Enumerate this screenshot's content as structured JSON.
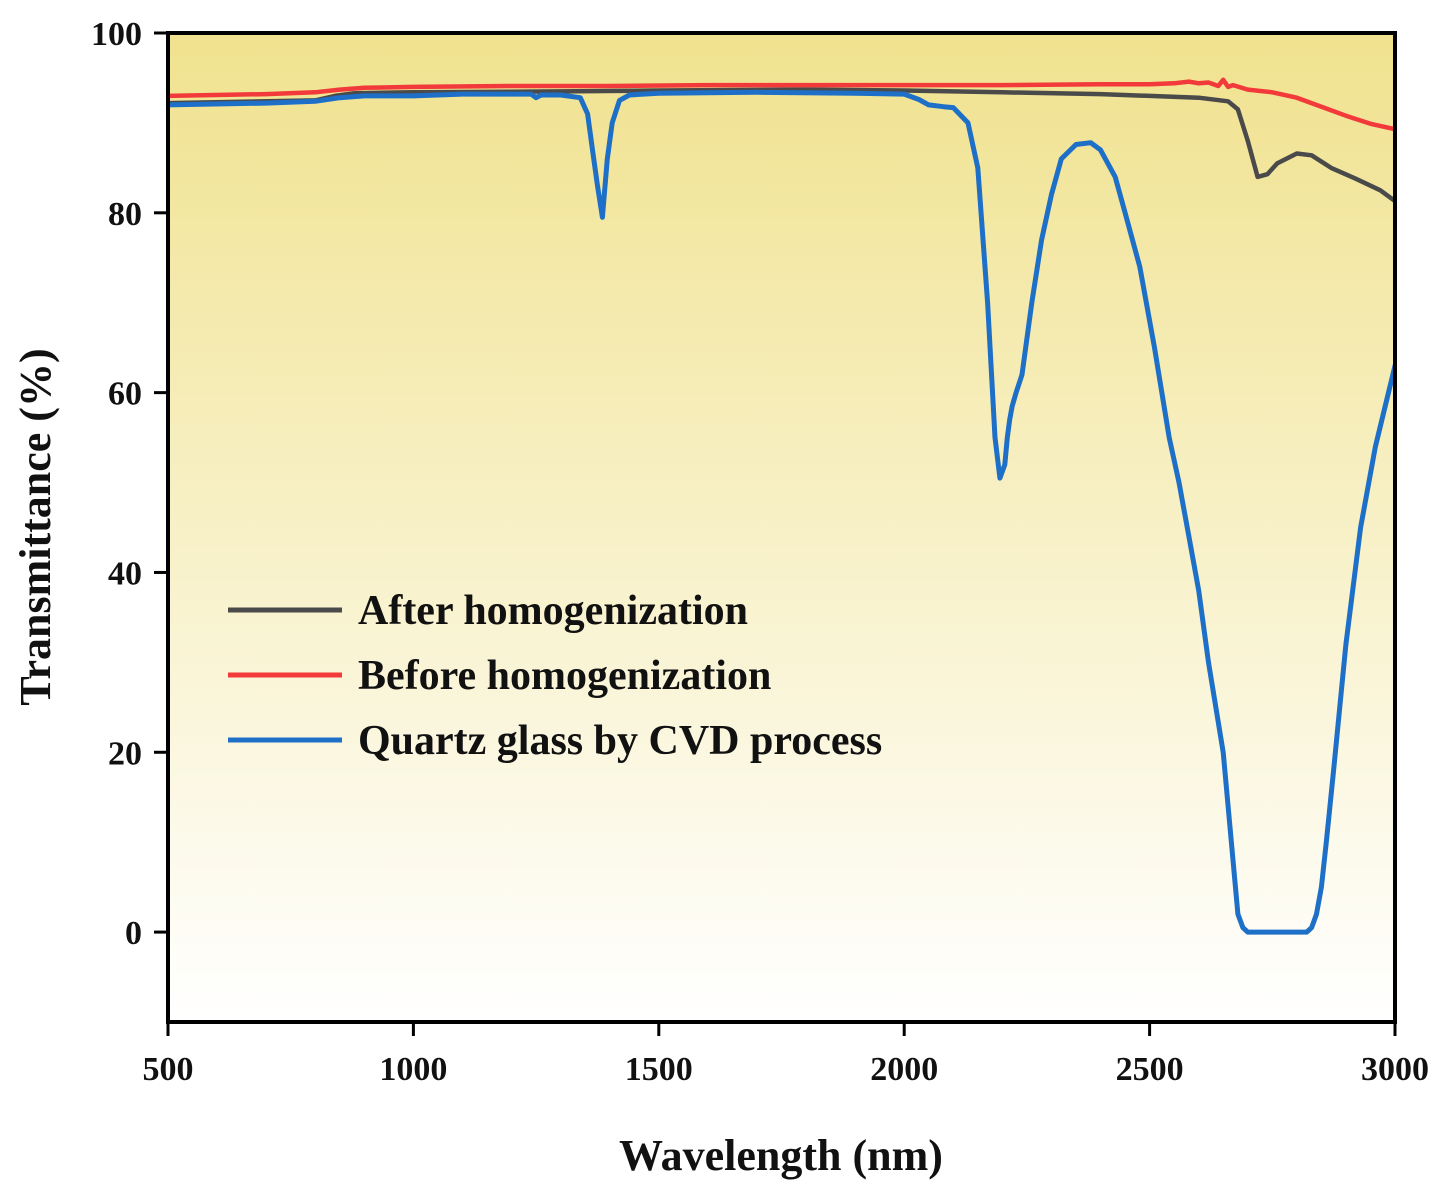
{
  "chart_data": {
    "type": "line",
    "title": "",
    "xlabel": "Wavelength (nm)",
    "ylabel": "Transmittance (%)",
    "xlim": [
      500,
      3000
    ],
    "ylim": [
      -10,
      100
    ],
    "xticks": [
      500,
      1000,
      1500,
      2000,
      2500,
      3000
    ],
    "yticks": [
      0,
      20,
      40,
      60,
      80,
      100
    ],
    "grid": false,
    "background": {
      "top": "#f0e28e",
      "bottom": "#ffffff"
    },
    "legend_position": "left-middle",
    "series": [
      {
        "name": "After homogenization",
        "color": "#4a4a4a",
        "x": [
          500,
          800,
          840,
          880,
          1000,
          1300,
          1500,
          1800,
          2000,
          2200,
          2400,
          2500,
          2600,
          2660,
          2680,
          2700,
          2720,
          2740,
          2760,
          2800,
          2830,
          2870,
          2920,
          2970,
          3000
        ],
        "y": [
          92.2,
          92.5,
          93.0,
          93.3,
          93.4,
          93.5,
          93.6,
          93.7,
          93.6,
          93.4,
          93.2,
          93.0,
          92.8,
          92.4,
          91.5,
          88.0,
          84.0,
          84.3,
          85.5,
          86.6,
          86.4,
          85.0,
          83.8,
          82.5,
          81.3
        ]
      },
      {
        "name": "Before homogenization",
        "color": "#f23a3a",
        "x": [
          500,
          700,
          800,
          850,
          900,
          1000,
          1200,
          1400,
          1600,
          1800,
          2000,
          2200,
          2400,
          2500,
          2550,
          2580,
          2600,
          2620,
          2640,
          2650,
          2660,
          2670,
          2700,
          2750,
          2800,
          2850,
          2900,
          2950,
          3000
        ],
        "y": [
          93.0,
          93.2,
          93.4,
          93.7,
          93.9,
          94.0,
          94.1,
          94.1,
          94.2,
          94.2,
          94.2,
          94.2,
          94.3,
          94.3,
          94.4,
          94.6,
          94.4,
          94.5,
          94.1,
          94.8,
          94.0,
          94.2,
          93.7,
          93.4,
          92.8,
          91.8,
          90.8,
          89.9,
          89.3
        ]
      },
      {
        "name": "Quartz glass by CVD process",
        "color": "#1e6fc8",
        "x": [
          500,
          700,
          800,
          850,
          900,
          1000,
          1100,
          1240,
          1250,
          1260,
          1300,
          1340,
          1355,
          1365,
          1375,
          1385,
          1395,
          1405,
          1420,
          1440,
          1500,
          1700,
          1900,
          2000,
          2030,
          2050,
          2080,
          2100,
          2130,
          2150,
          2170,
          2185,
          2195,
          2205,
          2210,
          2215,
          2220,
          2228,
          2240,
          2260,
          2280,
          2300,
          2320,
          2350,
          2380,
          2400,
          2430,
          2450,
          2480,
          2510,
          2540,
          2560,
          2580,
          2600,
          2620,
          2650,
          2670,
          2680,
          2690,
          2700,
          2720,
          2760,
          2800,
          2820,
          2830,
          2840,
          2850,
          2860,
          2875,
          2900,
          2930,
          2960,
          3000
        ],
        "y": [
          92.0,
          92.2,
          92.4,
          92.8,
          93.0,
          93.0,
          93.2,
          93.2,
          92.8,
          93.1,
          93.1,
          92.8,
          91.0,
          87.0,
          83.0,
          79.5,
          86.0,
          90.0,
          92.5,
          93.1,
          93.3,
          93.4,
          93.3,
          93.2,
          92.6,
          92.0,
          91.8,
          91.7,
          90.0,
          85.0,
          70.0,
          55.0,
          50.5,
          52.0,
          55.0,
          57.0,
          58.5,
          60.0,
          62.0,
          70.0,
          77.0,
          82.0,
          86.0,
          87.6,
          87.8,
          87.0,
          84.0,
          80.0,
          74.0,
          65.0,
          55.0,
          50.0,
          44.0,
          38.0,
          30.0,
          20.0,
          8.0,
          2.0,
          0.5,
          0,
          0,
          0,
          0,
          0,
          0.5,
          2.0,
          5.0,
          10.0,
          18.0,
          32.0,
          45.0,
          54.0,
          63.0
        ]
      }
    ]
  }
}
